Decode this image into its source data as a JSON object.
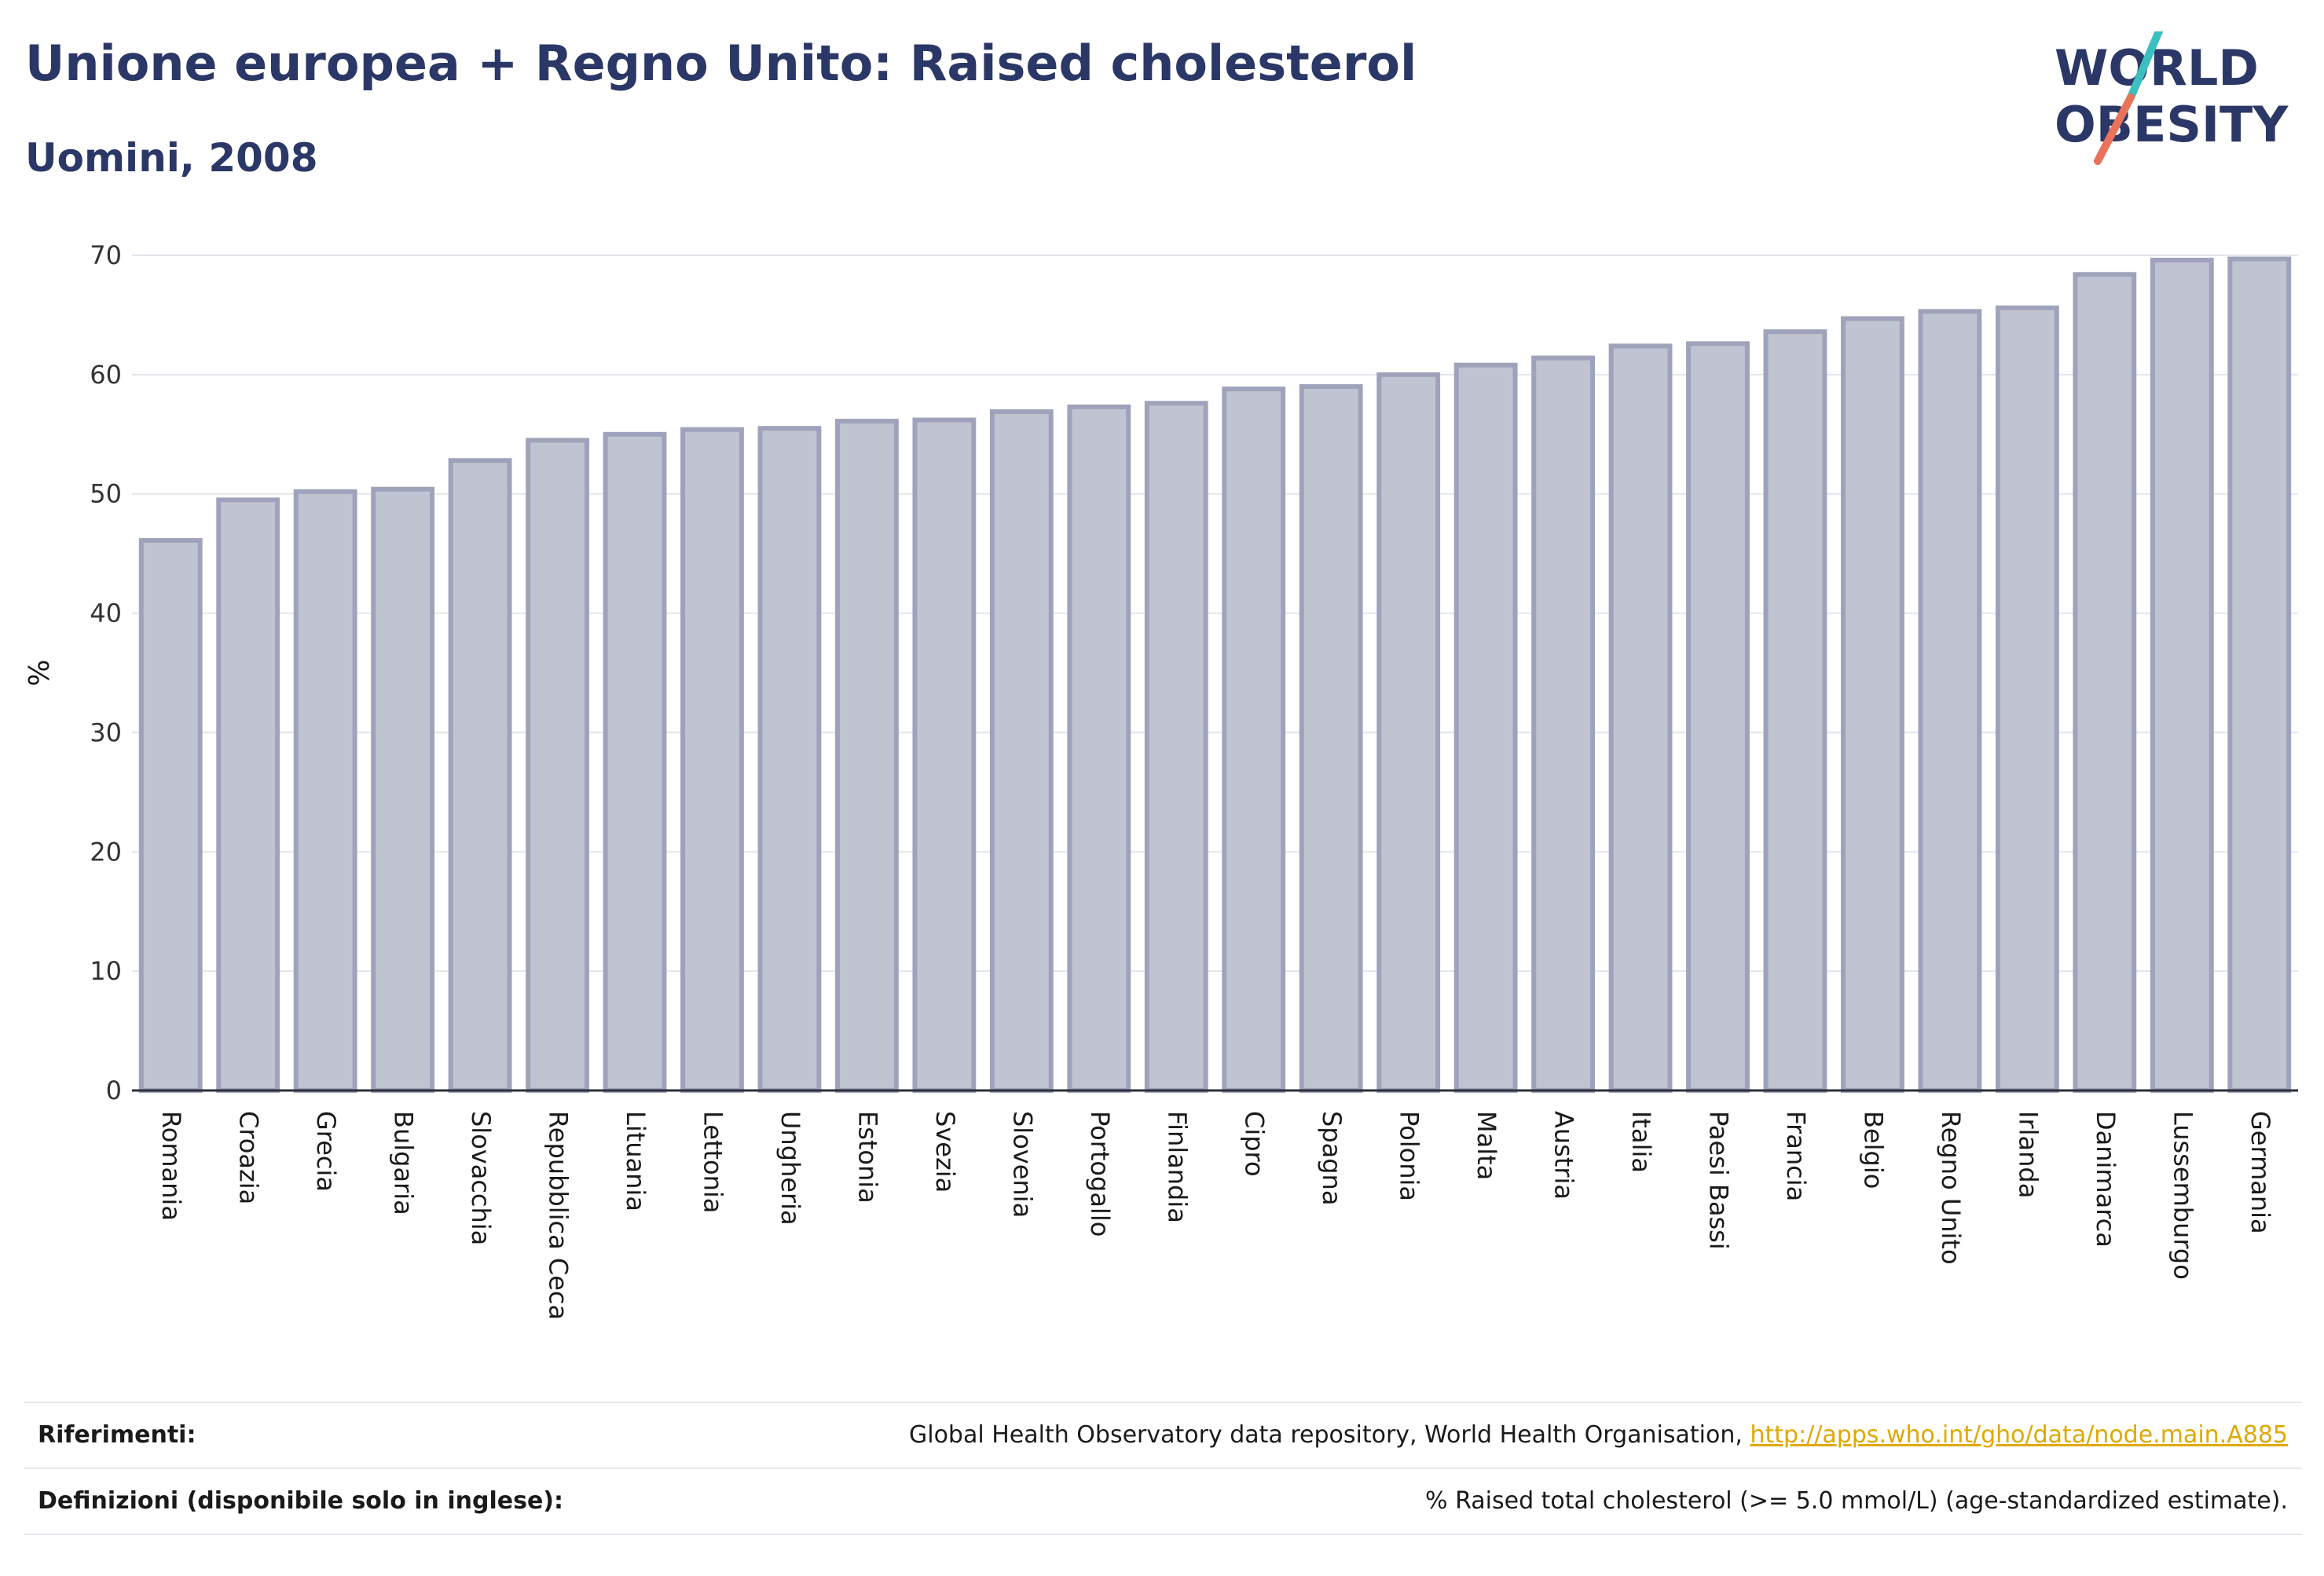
{
  "header": {
    "title": "Unione europea + Regno Unito: Raised cholesterol",
    "subtitle": "Uomini, 2008"
  },
  "logo": {
    "line1": "WORLD",
    "line2": "OBESITY",
    "colors": {
      "text": "#2b3766",
      "slash_teal": "#3bbfbf",
      "slash_red": "#e8735a"
    }
  },
  "chart_data": {
    "type": "bar",
    "ylabel": "%",
    "xlabel": "",
    "ylim": [
      0,
      70
    ],
    "yticks": [
      0,
      10,
      20,
      30,
      40,
      50,
      60,
      70
    ],
    "grid": true,
    "bar_fill": "#c0c3d1",
    "bar_stroke": "#9ea3bb",
    "categories": [
      "Romania",
      "Croazia",
      "Grecia",
      "Bulgaria",
      "Slovacchia",
      "Repubblica Ceca",
      "Lituania",
      "Lettonia",
      "Ungheria",
      "Estonia",
      "Svezia",
      "Slovenia",
      "Portogallo",
      "Finlandia",
      "Cipro",
      "Spagna",
      "Polonia",
      "Malta",
      "Austria",
      "Italia",
      "Paesi Bassi",
      "Francia",
      "Belgio",
      "Regno Unito",
      "Irlanda",
      "Danimarca",
      "Lussemburgo",
      "Germania"
    ],
    "values": [
      46.1,
      49.5,
      50.2,
      50.4,
      52.8,
      54.5,
      55.0,
      55.4,
      55.5,
      56.1,
      56.2,
      56.9,
      57.3,
      57.6,
      58.8,
      59.0,
      60.0,
      60.8,
      61.4,
      62.4,
      62.6,
      63.6,
      64.7,
      65.3,
      65.6,
      68.4,
      69.6,
      69.7
    ]
  },
  "footer": {
    "references_label": "Riferimenti:",
    "references_text": "Global Health Observatory data repository, World Health Organisation,",
    "references_link": "http://apps.who.int/gho/data/node.main.A885",
    "definitions_label": "Definizioni (disponibile solo in inglese):",
    "definitions_text": "% Raised total cholesterol (>= 5.0 mmol/L) (age-standardized estimate)."
  }
}
